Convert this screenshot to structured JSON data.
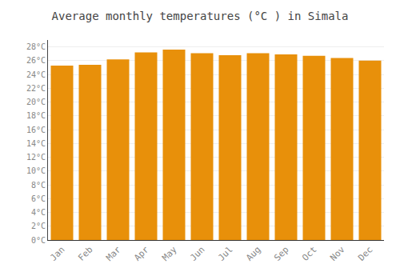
{
  "chart_data": {
    "type": "bar",
    "title": "Average monthly temperatures (°C ) in Simala",
    "categories": [
      "Jan",
      "Feb",
      "Mar",
      "Apr",
      "May",
      "Jun",
      "Jul",
      "Aug",
      "Sep",
      "Oct",
      "Nov",
      "Dec"
    ],
    "values": [
      25.3,
      25.4,
      26.2,
      27.2,
      27.6,
      27.1,
      26.8,
      27.1,
      26.9,
      26.7,
      26.4,
      26.0
    ],
    "color": "#E8900A",
    "ylim": [
      0,
      29.0
    ],
    "yticks": [
      {
        "value": 0,
        "label": "0°C"
      },
      {
        "value": 2,
        "label": "2°C"
      },
      {
        "value": 4,
        "label": "4°C"
      },
      {
        "value": 6,
        "label": "6°C"
      },
      {
        "value": 8,
        "label": "8°C"
      },
      {
        "value": 10,
        "label": "10°C"
      },
      {
        "value": 12,
        "label": "12°C"
      },
      {
        "value": 14,
        "label": "14°C"
      },
      {
        "value": 16,
        "label": "16°C"
      },
      {
        "value": 18,
        "label": "18°C"
      },
      {
        "value": 20,
        "label": "20°C"
      },
      {
        "value": 22,
        "label": "22°C"
      },
      {
        "value": 24,
        "label": "24°C"
      },
      {
        "value": 26,
        "label": "26°C"
      },
      {
        "value": 28,
        "label": "28°C"
      }
    ],
    "grid": true
  }
}
